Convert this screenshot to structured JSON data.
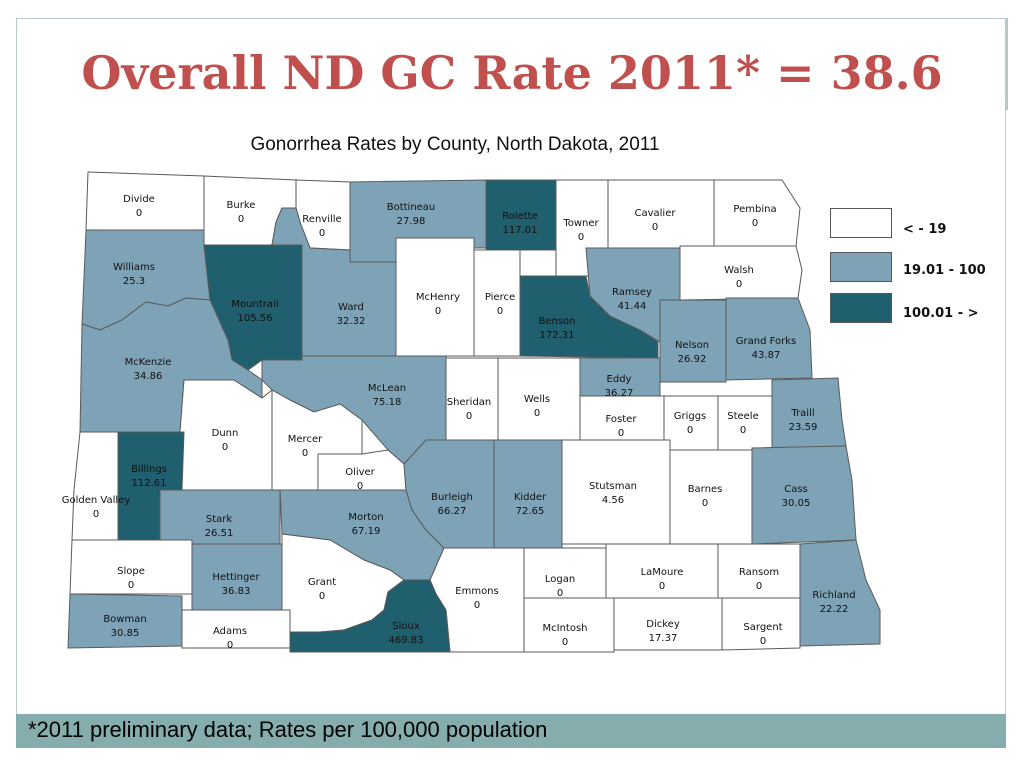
{
  "slide": {
    "title": "Overall ND GC Rate 2011* = 38.6",
    "footnote": "*2011 preliminary data; Rates per 100,000 population"
  },
  "map": {
    "title": "Gonorrhea Rates by County, North Dakota, 2011",
    "colors": {
      "low": "#ffffff",
      "mid": "#7ea3b7",
      "high": "#1f5f6e",
      "border": "#5a5a5a"
    },
    "legend": [
      {
        "label": "< - 19",
        "color": "#ffffff"
      },
      {
        "label": "19.01 - 100",
        "color": "#7ea3b7"
      },
      {
        "label": "100.01 - >",
        "color": "#1f5f6e"
      }
    ],
    "counties": [
      {
        "name": "Divide",
        "rate": "0",
        "cls": "low"
      },
      {
        "name": "Burke",
        "rate": "0",
        "cls": "low"
      },
      {
        "name": "Renville",
        "rate": "0",
        "cls": "low"
      },
      {
        "name": "Bottineau",
        "rate": "27.98",
        "cls": "mid"
      },
      {
        "name": "Rolette",
        "rate": "117.01",
        "cls": "high"
      },
      {
        "name": "Towner",
        "rate": "0",
        "cls": "low"
      },
      {
        "name": "Cavalier",
        "rate": "0",
        "cls": "low"
      },
      {
        "name": "Pembina",
        "rate": "0",
        "cls": "low"
      },
      {
        "name": "Williams",
        "rate": "25.3",
        "cls": "mid"
      },
      {
        "name": "Mountrail",
        "rate": "105.56",
        "cls": "high"
      },
      {
        "name": "Ward",
        "rate": "32.32",
        "cls": "mid"
      },
      {
        "name": "McHenry",
        "rate": "0",
        "cls": "low"
      },
      {
        "name": "Pierce",
        "rate": "0",
        "cls": "low"
      },
      {
        "name": "Benson",
        "rate": "172.31",
        "cls": "high"
      },
      {
        "name": "Ramsey",
        "rate": "41.44",
        "cls": "mid"
      },
      {
        "name": "Walsh",
        "rate": "0",
        "cls": "low"
      },
      {
        "name": "Nelson",
        "rate": "26.92",
        "cls": "mid"
      },
      {
        "name": "Grand Forks",
        "rate": "43.87",
        "cls": "mid"
      },
      {
        "name": "McKenzie",
        "rate": "34.86",
        "cls": "mid"
      },
      {
        "name": "McLean",
        "rate": "75.18",
        "cls": "mid"
      },
      {
        "name": "Sheridan",
        "rate": "0",
        "cls": "low"
      },
      {
        "name": "Wells",
        "rate": "0",
        "cls": "low"
      },
      {
        "name": "Eddy",
        "rate": "36.27",
        "cls": "mid"
      },
      {
        "name": "Foster",
        "rate": "0",
        "cls": "low"
      },
      {
        "name": "Griggs",
        "rate": "0",
        "cls": "low"
      },
      {
        "name": "Steele",
        "rate": "0",
        "cls": "low"
      },
      {
        "name": "Traill",
        "rate": "23.59",
        "cls": "mid"
      },
      {
        "name": "Dunn",
        "rate": "0",
        "cls": "low"
      },
      {
        "name": "Mercer",
        "rate": "0",
        "cls": "low"
      },
      {
        "name": "Oliver",
        "rate": "0",
        "cls": "low"
      },
      {
        "name": "Billings",
        "rate": "112.61",
        "cls": "high"
      },
      {
        "name": "Golden Valley",
        "rate": "0",
        "cls": "low"
      },
      {
        "name": "Stark",
        "rate": "26.51",
        "cls": "mid"
      },
      {
        "name": "Morton",
        "rate": "67.19",
        "cls": "mid"
      },
      {
        "name": "Burleigh",
        "rate": "66.27",
        "cls": "mid"
      },
      {
        "name": "Kidder",
        "rate": "72.65",
        "cls": "mid"
      },
      {
        "name": "Stutsman",
        "rate": "4.56",
        "cls": "low"
      },
      {
        "name": "Barnes",
        "rate": "0",
        "cls": "low"
      },
      {
        "name": "Cass",
        "rate": "30.05",
        "cls": "mid"
      },
      {
        "name": "Slope",
        "rate": "0",
        "cls": "low"
      },
      {
        "name": "Hettinger",
        "rate": "36.83",
        "cls": "mid"
      },
      {
        "name": "Grant",
        "rate": "0",
        "cls": "low"
      },
      {
        "name": "Emmons",
        "rate": "0",
        "cls": "low"
      },
      {
        "name": "Logan",
        "rate": "0",
        "cls": "low"
      },
      {
        "name": "LaMoure",
        "rate": "0",
        "cls": "low"
      },
      {
        "name": "Ransom",
        "rate": "0",
        "cls": "low"
      },
      {
        "name": "Richland",
        "rate": "22.22",
        "cls": "mid"
      },
      {
        "name": "Bowman",
        "rate": "30.85",
        "cls": "mid"
      },
      {
        "name": "Adams",
        "rate": "0",
        "cls": "low"
      },
      {
        "name": "Sioux",
        "rate": "469.83",
        "cls": "high"
      },
      {
        "name": "McIntosh",
        "rate": "0",
        "cls": "low"
      },
      {
        "name": "Dickey",
        "rate": "17.37",
        "cls": "low"
      },
      {
        "name": "Sargent",
        "rate": "0",
        "cls": "low"
      }
    ]
  }
}
